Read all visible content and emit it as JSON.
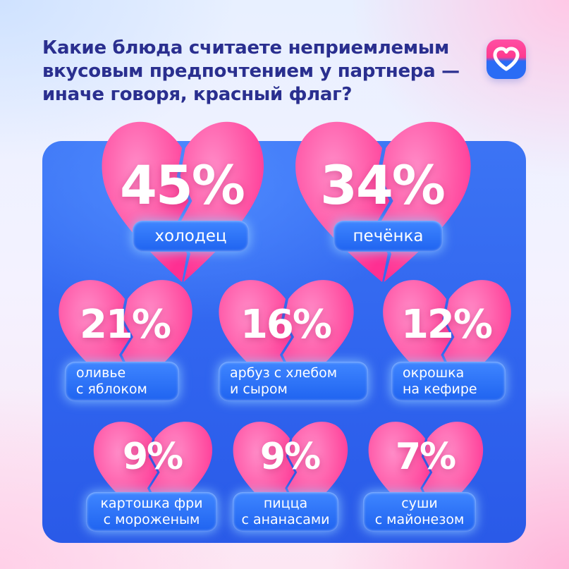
{
  "title_lines": [
    "Какие блюда считаете неприемлемым",
    "вкусовым предпочтением у партнера —",
    "иначе говоря, красный флаг?"
  ],
  "colors": {
    "heart": "#ff5aa8",
    "panel": "#2f63ee",
    "pill": "#1f63f0",
    "title": "#2a2f8f"
  },
  "icons": {
    "logo": "heart-logo-icon",
    "shape": "broken-heart-icon"
  },
  "chart_data": {
    "type": "bar",
    "title": "Какие блюда считаете неприемлемым вкусовым предпочтением у партнера — иначе говоря, красный флаг?",
    "unit": "%",
    "categories": [
      "холодец",
      "печёнка",
      "оливье с яблоком",
      "арбуз с хлебом и сыром",
      "окрошка на кефире",
      "картошка фри с мороженым",
      "пицца с ананасами",
      "суши с майонезом"
    ],
    "values": [
      45,
      34,
      21,
      16,
      12,
      9,
      9,
      7
    ],
    "items": [
      {
        "value": 45,
        "value_label": "45%",
        "label_lines": [
          "холодец"
        ]
      },
      {
        "value": 34,
        "value_label": "34%",
        "label_lines": [
          "печёнка"
        ]
      },
      {
        "value": 21,
        "value_label": "21%",
        "label_lines": [
          "оливье",
          "с яблоком"
        ]
      },
      {
        "value": 16,
        "value_label": "16%",
        "label_lines": [
          "арбуз с хлебом",
          "и сыром"
        ]
      },
      {
        "value": 12,
        "value_label": "12%",
        "label_lines": [
          "окрошка",
          "на кефире"
        ]
      },
      {
        "value": 9,
        "value_label": "9%",
        "label_lines": [
          "картошка фри",
          "с мороженым"
        ]
      },
      {
        "value": 9,
        "value_label": "9%",
        "label_lines": [
          "пицца",
          "с ананасами"
        ]
      },
      {
        "value": 7,
        "value_label": "7%",
        "label_lines": [
          "суши",
          "с майонезом"
        ]
      }
    ]
  }
}
